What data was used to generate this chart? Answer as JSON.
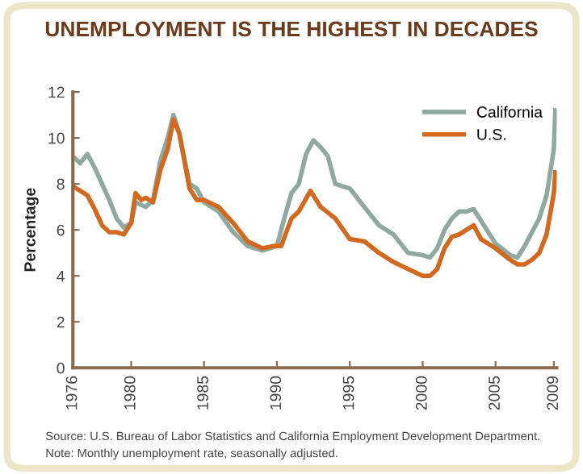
{
  "chart_data": {
    "type": "line",
    "title": "UNEMPLOYMENT IS THE HIGHEST IN DECADES",
    "ylabel": "Percentage",
    "annotations": [
      "Source: U.S. Bureau of Labor Statistics and California Employment Development Department.",
      "Note: Monthly unemployment rate, seasonally adjusted."
    ],
    "series": [
      {
        "name": "California",
        "color": "#8fa8a0",
        "x": [
          1976,
          1976.5,
          1977,
          1977.5,
          1978,
          1978.5,
          1979,
          1979.5,
          1980,
          1980.3,
          1981,
          1981.5,
          1982,
          1982.5,
          1982.9,
          1983.3,
          1984,
          1984.5,
          1985,
          1986,
          1987,
          1988,
          1989,
          1990,
          1990.5,
          1991,
          1991.5,
          1992,
          1992.5,
          1993,
          1993.5,
          1994,
          1995,
          1996,
          1997,
          1998,
          1999,
          2000,
          2000.5,
          2001,
          2001.5,
          2002,
          2002.5,
          2003,
          2003.5,
          2004,
          2005,
          2006,
          2006.5,
          2007,
          2008,
          2008.5,
          2009,
          2009.1
        ],
        "values": [
          9.2,
          8.9,
          9.3,
          8.7,
          8.0,
          7.3,
          6.5,
          6.1,
          6.3,
          7.2,
          7.0,
          7.3,
          9.0,
          10.0,
          11.0,
          10.2,
          8.0,
          7.8,
          7.2,
          6.8,
          5.9,
          5.3,
          5.1,
          5.3,
          6.5,
          7.6,
          8.0,
          9.3,
          9.9,
          9.6,
          9.2,
          8.0,
          7.8,
          7.0,
          6.2,
          5.8,
          5.0,
          4.9,
          4.8,
          5.2,
          6.0,
          6.5,
          6.8,
          6.8,
          6.9,
          6.4,
          5.4,
          4.9,
          4.8,
          5.3,
          6.5,
          7.5,
          9.5,
          11.2
        ]
      },
      {
        "name": "U.S.",
        "color": "#d2691e",
        "x": [
          1976,
          1976.5,
          1977,
          1977.5,
          1978,
          1978.5,
          1979,
          1979.5,
          1980,
          1980.3,
          1980.7,
          1981,
          1981.5,
          1982,
          1982.5,
          1982.9,
          1983.3,
          1983.8,
          1984,
          1984.5,
          1985,
          1986,
          1987,
          1988,
          1989,
          1989.8,
          1990.3,
          1990.7,
          1991,
          1991.5,
          1992.3,
          1993,
          1994,
          1995,
          1996,
          1997,
          1998,
          1999,
          2000,
          2000.5,
          2001,
          2001.5,
          2002,
          2002.5,
          2003,
          2003.5,
          2004,
          2005,
          2006,
          2006.5,
          2007,
          2007.5,
          2008,
          2008.5,
          2009,
          2009.1
        ],
        "values": [
          7.9,
          7.7,
          7.5,
          6.9,
          6.2,
          5.9,
          5.9,
          5.8,
          6.3,
          7.6,
          7.3,
          7.4,
          7.2,
          8.6,
          9.5,
          10.8,
          10.2,
          8.5,
          7.8,
          7.3,
          7.3,
          7.0,
          6.3,
          5.5,
          5.2,
          5.3,
          5.3,
          6.0,
          6.5,
          6.8,
          7.7,
          7.0,
          6.5,
          5.6,
          5.5,
          5.0,
          4.6,
          4.3,
          4.0,
          4.0,
          4.3,
          5.2,
          5.7,
          5.8,
          6.0,
          6.2,
          5.6,
          5.2,
          4.7,
          4.5,
          4.5,
          4.7,
          5.0,
          5.8,
          7.6,
          8.5
        ]
      }
    ],
    "xlim": [
      1976,
      2009.2
    ],
    "xticks": [
      1976,
      1980,
      1985,
      1990,
      1995,
      2000,
      2005,
      2009
    ],
    "ylim": [
      0,
      12
    ],
    "yticks": [
      0,
      2,
      4,
      6,
      8,
      10,
      12
    ],
    "grid": false,
    "legend": "top right",
    "marker": "none",
    "line_style": "solid"
  }
}
